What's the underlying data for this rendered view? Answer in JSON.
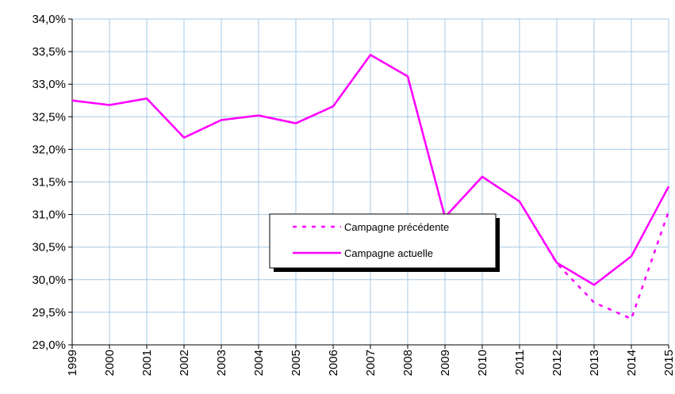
{
  "chart_data": {
    "type": "line",
    "categories": [
      "1999",
      "2000",
      "2001",
      "2002",
      "2003",
      "2004",
      "2005",
      "2006",
      "2007",
      "2008",
      "2009",
      "2010",
      "2011",
      "2012",
      "2013",
      "2014",
      "2015"
    ],
    "series": [
      {
        "name": "Campagne précédente",
        "color": "#ff00ff",
        "dash": true,
        "values": [
          32.75,
          32.68,
          32.78,
          32.18,
          32.45,
          32.52,
          32.4,
          32.66,
          33.45,
          33.12,
          30.96,
          31.58,
          31.2,
          30.25,
          29.65,
          29.4,
          31.05
        ]
      },
      {
        "name": "Campagne actuelle",
        "color": "#ff00ff",
        "dash": false,
        "values": [
          32.75,
          32.68,
          32.78,
          32.18,
          32.45,
          32.52,
          32.4,
          32.66,
          33.45,
          33.12,
          30.96,
          31.58,
          31.2,
          30.26,
          29.92,
          30.36,
          31.43
        ]
      }
    ],
    "ylim": [
      29.0,
      34.0
    ],
    "yticks": [
      {
        "value": 29.0,
        "label": "29,0%"
      },
      {
        "value": 29.5,
        "label": "29,5%"
      },
      {
        "value": 30.0,
        "label": "30,0%"
      },
      {
        "value": 30.5,
        "label": "30,5%"
      },
      {
        "value": 31.0,
        "label": "31,0%"
      },
      {
        "value": 31.5,
        "label": "31,5%"
      },
      {
        "value": 32.0,
        "label": "32,0%"
      },
      {
        "value": 32.5,
        "label": "32,5%"
      },
      {
        "value": 33.0,
        "label": "33,0%"
      },
      {
        "value": 33.5,
        "label": "33,5%"
      },
      {
        "value": 34.0,
        "label": "34,0%"
      }
    ],
    "grid": true
  }
}
